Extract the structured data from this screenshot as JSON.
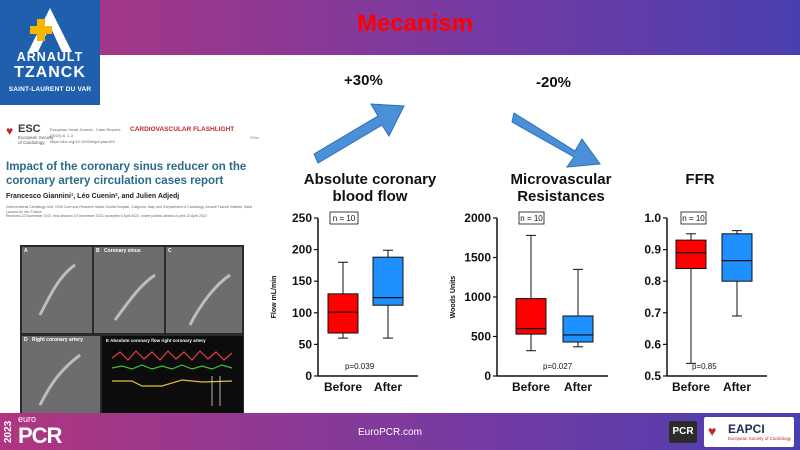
{
  "slide": {
    "title": "Mecanism",
    "url": "EuroPCR.com"
  },
  "logo": {
    "line1": "ARNAULT",
    "line2": "TZANCK",
    "line3": "SAINT-LAURENT DU VAR"
  },
  "paper": {
    "society": "ESC",
    "society_sub": "European Society of Cardiology",
    "journal": "European Heart Journal - Case Reports (2023) 8, 1-3 https://doi.org/10.1093/ehjcr/ytac169",
    "category": "CARDIOVASCULAR FLASHLIGHT",
    "category_sub": "GVer",
    "title": "Impact of the coronary sinus reducer on the coronary artery circulation cases report",
    "authors": "Francesco Giannini¹, Léo Cuenin², and Julien Adjedj",
    "affiliation": "¹Interventional Cardiology Unit, GVM Care and Research Maria Cecilia Hospital, Cotignola, Italy; and ²Department of Cardiology, Arnault Tzanck Institute, Saint Laurent du Var, France",
    "dates": "Received 22 November 2021; first decision 19 December 2021; accepted 6 April 2022; online publish-ahead-of-print 22 April 2022",
    "figure": {
      "panel_a": "A",
      "panel_b": "B",
      "panel_b_label": "Coronary sinus",
      "panel_c": "C",
      "panel_d": "D",
      "panel_d_label": "Right coronary artery",
      "panel_e": "E",
      "panel_e_label": "Absolute coronary flow right coronary artery"
    }
  },
  "arrows": {
    "left_pct": "+30%",
    "right_pct": "-20%",
    "color": "#4a90d9"
  },
  "chart_data": [
    {
      "type": "box",
      "title": "Absolute coronary blood flow",
      "ylabel": "Flow mL/min",
      "xlabel": "",
      "categories": [
        "Before",
        "After"
      ],
      "ylim": [
        0,
        250
      ],
      "yticks": [
        0,
        50,
        100,
        150,
        200,
        250
      ],
      "boxes": [
        {
          "name": "Before",
          "min": 60,
          "q1": 68,
          "median": 101,
          "q3": 130,
          "max": 180,
          "color": "#ff0000"
        },
        {
          "name": "After",
          "min": 60,
          "q1": 112,
          "median": 124,
          "q3": 188,
          "max": 199,
          "color": "#1e90ff"
        }
      ],
      "n_label": "n = 10",
      "p_label": "p=0.039"
    },
    {
      "type": "box",
      "title": "Microvascular Resistances",
      "ylabel": "Woods Units",
      "xlabel": "",
      "categories": [
        "Before",
        "After"
      ],
      "ylim": [
        0,
        2000
      ],
      "yticks": [
        0,
        500,
        1000,
        1500,
        2000
      ],
      "boxes": [
        {
          "name": "Before",
          "min": 320,
          "q1": 530,
          "median": 600,
          "q3": 980,
          "max": 1780,
          "color": "#ff0000"
        },
        {
          "name": "After",
          "min": 370,
          "q1": 430,
          "median": 520,
          "q3": 760,
          "max": 1350,
          "color": "#1e90ff"
        }
      ],
      "n_label": "n = 10",
      "p_label": "p=0.027"
    },
    {
      "type": "box",
      "title": "FFR",
      "ylabel": "",
      "xlabel": "",
      "categories": [
        "Before",
        "After"
      ],
      "ylim": [
        0.5,
        1.0
      ],
      "yticks": [
        0.5,
        0.6,
        0.7,
        0.8,
        0.9,
        1.0
      ],
      "boxes": [
        {
          "name": "Before",
          "min": 0.54,
          "q1": 0.84,
          "median": 0.89,
          "q3": 0.93,
          "max": 0.95,
          "color": "#ff0000"
        },
        {
          "name": "After",
          "min": 0.69,
          "q1": 0.8,
          "median": 0.865,
          "q3": 0.95,
          "max": 0.96,
          "color": "#1e90ff"
        }
      ],
      "n_label": "n = 10",
      "p_label": "p=0.85"
    }
  ],
  "footer": {
    "year": "2023",
    "euro": "euro",
    "pcr": "PCR",
    "pcr_badge": "PCR",
    "eapci": "EAPCI",
    "eapci_sub": "European Society of Cardiology"
  }
}
